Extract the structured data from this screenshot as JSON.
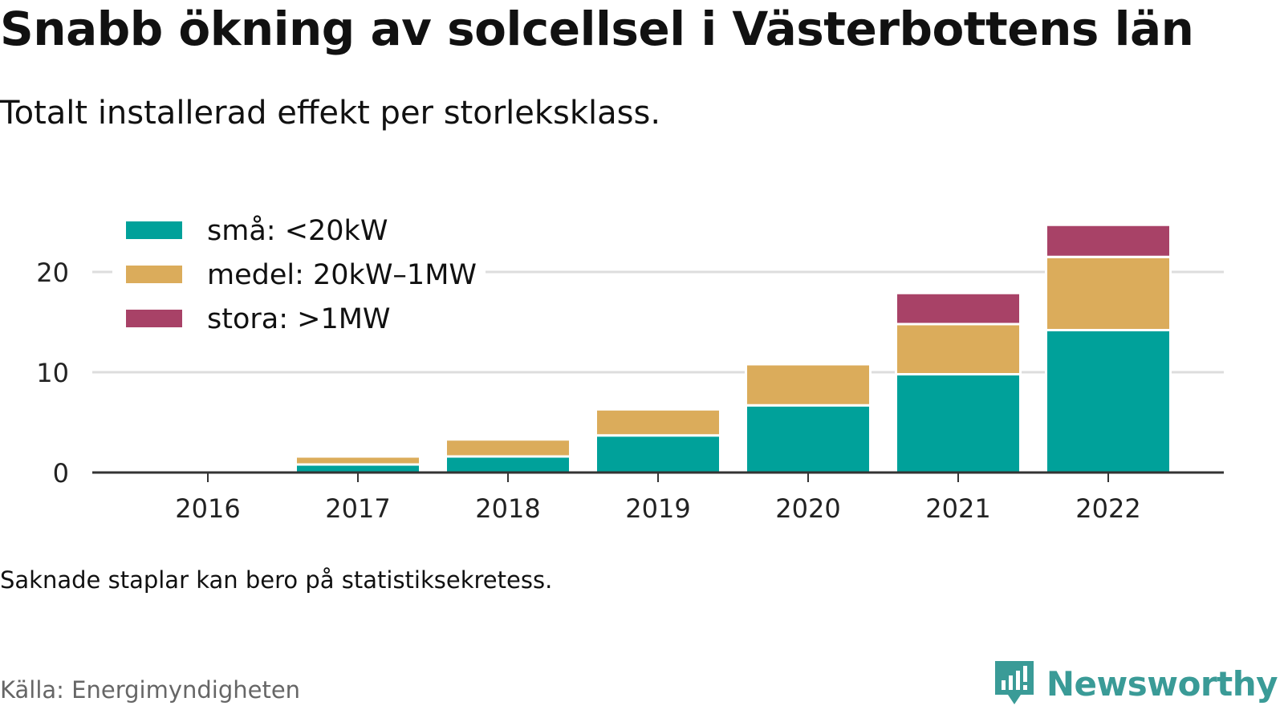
{
  "title": "Snabb ökning av solcellsel i Västerbottens län",
  "subtitle": "Totalt installerad effekt per storleksklass.",
  "note": "Saknade staplar kan bero på statistiksekretess.",
  "source": "Källa: Energimyndigheten",
  "brand": "Newsworthy",
  "colors": {
    "small": "#00a19a",
    "medium": "#dbac5b",
    "large": "#a84267",
    "grid": "#dddddd",
    "axis": "#333333",
    "brand": "#3a9b97"
  },
  "chart_data": {
    "type": "bar",
    "stacked": true,
    "categories": [
      "2016",
      "2017",
      "2018",
      "2019",
      "2020",
      "2021",
      "2022"
    ],
    "series": [
      {
        "name": "små: <20kW",
        "color": "#00a19a",
        "values": [
          0,
          0.8,
          1.6,
          3.7,
          6.7,
          9.8,
          14.2
        ]
      },
      {
        "name": "medel: 20kW–1MW",
        "color": "#dbac5b",
        "values": [
          0,
          0.8,
          1.7,
          2.6,
          4.1,
          5.0,
          7.3
        ]
      },
      {
        "name": "stora: >1MW",
        "color": "#a84267",
        "values": [
          0,
          0,
          0,
          0,
          0,
          3.1,
          3.2
        ]
      }
    ],
    "ylim": [
      0,
      25
    ],
    "yticks": [
      0,
      10,
      20
    ],
    "grid": true,
    "legend_position": "top-left",
    "xlabel": "",
    "ylabel": ""
  }
}
